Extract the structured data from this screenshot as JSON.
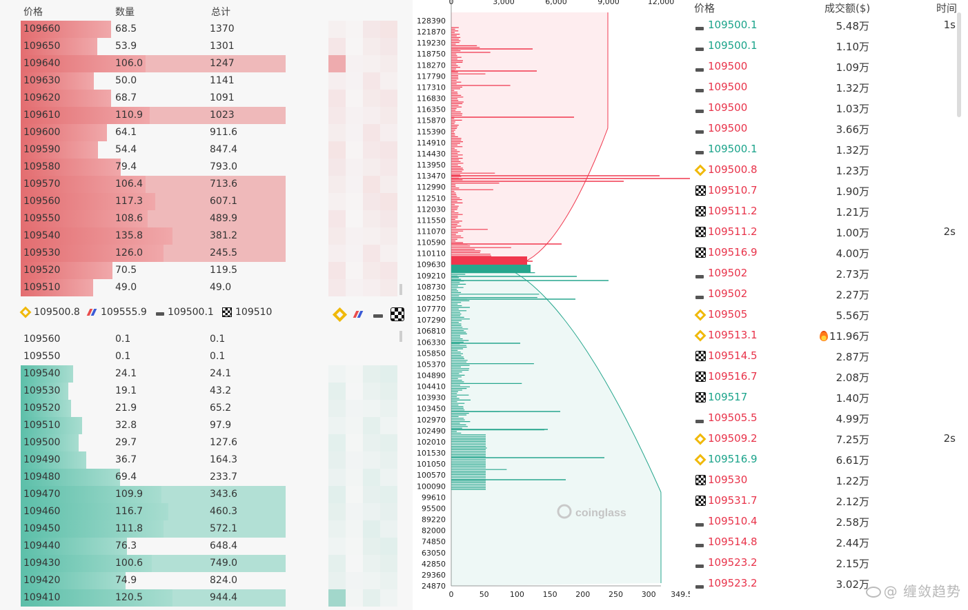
{
  "orderbook": {
    "headers": {
      "price": "价格",
      "qty": "数量",
      "total": "总计"
    },
    "asks": [
      {
        "price": "109660",
        "qty": "68.5",
        "total": "1370"
      },
      {
        "price": "109650",
        "qty": "53.9",
        "total": "1301"
      },
      {
        "price": "109640",
        "qty": "106.0",
        "total": "1247"
      },
      {
        "price": "109630",
        "qty": "50.0",
        "total": "1141"
      },
      {
        "price": "109620",
        "qty": "68.7",
        "total": "1091"
      },
      {
        "price": "109610",
        "qty": "110.9",
        "total": "1023"
      },
      {
        "price": "109600",
        "qty": "64.1",
        "total": "911.6"
      },
      {
        "price": "109590",
        "qty": "54.4",
        "total": "847.4"
      },
      {
        "price": "109580",
        "qty": "79.4",
        "total": "793.0"
      },
      {
        "price": "109570",
        "qty": "106.4",
        "total": "713.6"
      },
      {
        "price": "109560",
        "qty": "117.3",
        "total": "607.1"
      },
      {
        "price": "109550",
        "qty": "108.6",
        "total": "489.9"
      },
      {
        "price": "109540",
        "qty": "135.8",
        "total": "381.2"
      },
      {
        "price": "109530",
        "qty": "126.0",
        "total": "245.5"
      },
      {
        "price": "109520",
        "qty": "70.5",
        "total": "119.5"
      },
      {
        "price": "109510",
        "qty": "49.0",
        "total": "49.0"
      }
    ],
    "bids": [
      {
        "price": "109560",
        "qty": "0.1",
        "total": "0.1"
      },
      {
        "price": "109550",
        "qty": "0.1",
        "total": "0.1"
      },
      {
        "price": "109540",
        "qty": "24.1",
        "total": "24.1"
      },
      {
        "price": "109530",
        "qty": "19.1",
        "total": "43.2"
      },
      {
        "price": "109520",
        "qty": "21.9",
        "total": "65.2"
      },
      {
        "price": "109510",
        "qty": "32.8",
        "total": "97.9"
      },
      {
        "price": "109500",
        "qty": "29.7",
        "total": "127.6"
      },
      {
        "price": "109490",
        "qty": "36.7",
        "total": "164.3"
      },
      {
        "price": "109480",
        "qty": "69.4",
        "total": "233.7"
      },
      {
        "price": "109470",
        "qty": "109.9",
        "total": "343.6"
      },
      {
        "price": "109460",
        "qty": "116.7",
        "total": "460.3"
      },
      {
        "price": "109450",
        "qty": "111.8",
        "total": "572.1"
      },
      {
        "price": "109440",
        "qty": "76.3",
        "total": "648.4"
      },
      {
        "price": "109430",
        "qty": "100.6",
        "total": "749.0"
      },
      {
        "price": "109420",
        "qty": "74.9",
        "total": "824.0"
      },
      {
        "price": "109410",
        "qty": "120.5",
        "total": "944.4"
      }
    ],
    "exchange_prices": [
      {
        "icon": "binance-icon",
        "price": "109500.8"
      },
      {
        "icon": "bitmex-icon",
        "price": "109555.9"
      },
      {
        "icon": "bybit-icon",
        "price": "109500.1"
      },
      {
        "icon": "okx-icon",
        "price": "109510"
      }
    ]
  },
  "depth_chart": {
    "chart_data": {
      "type": "bar",
      "top_axis_ticks": [
        "0",
        "3,000",
        "6,000",
        "9,000",
        "12,000"
      ],
      "bottom_axis_ticks": [
        "0",
        "50",
        "100",
        "150",
        "200",
        "250",
        "300",
        "349.5"
      ],
      "y_ticks": [
        "128390",
        "121870",
        "119230",
        "118750",
        "118270",
        "117790",
        "117310",
        "116830",
        "116350",
        "115870",
        "115390",
        "114910",
        "114430",
        "113950",
        "113470",
        "112990",
        "112510",
        "112030",
        "111550",
        "111070",
        "110590",
        "110110",
        "109630",
        "109210",
        "108730",
        "108250",
        "107770",
        "107290",
        "106810",
        "106330",
        "105850",
        "105370",
        "104890",
        "104410",
        "103930",
        "103450",
        "102970",
        "102490",
        "102010",
        "101530",
        "101050",
        "100570",
        "100090",
        "99610",
        "95500",
        "89220",
        "82000",
        "74850",
        "63050",
        "42850",
        "29360",
        "24870"
      ],
      "ask_color": "#f0374d",
      "bid_color": "#26a68d",
      "watermark": "coinglass"
    }
  },
  "trades": {
    "headers": {
      "price": "价格",
      "amount": "成交额($)",
      "time": "时间"
    },
    "rows": [
      {
        "ex": "bybit-icon",
        "price": "109500.1",
        "side": "buy",
        "amount": "5.48万",
        "time": "1s"
      },
      {
        "ex": "bybit-icon",
        "price": "109500.1",
        "side": "buy",
        "amount": "1.10万",
        "time": ""
      },
      {
        "ex": "bybit-icon",
        "price": "109500",
        "side": "sell",
        "amount": "1.09万",
        "time": ""
      },
      {
        "ex": "bybit-icon",
        "price": "109500",
        "side": "sell",
        "amount": "1.32万",
        "time": ""
      },
      {
        "ex": "bybit-icon",
        "price": "109500",
        "side": "sell",
        "amount": "1.03万",
        "time": ""
      },
      {
        "ex": "bybit-icon",
        "price": "109500",
        "side": "sell",
        "amount": "3.66万",
        "time": ""
      },
      {
        "ex": "bybit-icon",
        "price": "109500.1",
        "side": "buy",
        "amount": "1.32万",
        "time": ""
      },
      {
        "ex": "binance-icon",
        "price": "109500.8",
        "side": "sell",
        "amount": "1.23万",
        "time": ""
      },
      {
        "ex": "okx-icon",
        "price": "109510.7",
        "side": "sell",
        "amount": "1.90万",
        "time": ""
      },
      {
        "ex": "okx-icon",
        "price": "109511.2",
        "side": "sell",
        "amount": "1.21万",
        "time": ""
      },
      {
        "ex": "okx-icon",
        "price": "109511.2",
        "side": "sell",
        "amount": "1.00万",
        "time": "2s"
      },
      {
        "ex": "okx-icon",
        "price": "109516.9",
        "side": "sell",
        "amount": "4.00万",
        "time": ""
      },
      {
        "ex": "bybit-icon",
        "price": "109502",
        "side": "sell",
        "amount": "2.73万",
        "time": ""
      },
      {
        "ex": "bybit-icon",
        "price": "109502",
        "side": "sell",
        "amount": "2.27万",
        "time": ""
      },
      {
        "ex": "binance-icon",
        "price": "109505",
        "side": "sell",
        "amount": "5.56万",
        "time": ""
      },
      {
        "ex": "binance-icon",
        "price": "109513.1",
        "side": "sell",
        "amount": "11.96万",
        "time": "",
        "hot": true
      },
      {
        "ex": "okx-icon",
        "price": "109514.5",
        "side": "sell",
        "amount": "2.87万",
        "time": ""
      },
      {
        "ex": "okx-icon",
        "price": "109516.7",
        "side": "sell",
        "amount": "2.08万",
        "time": ""
      },
      {
        "ex": "okx-icon",
        "price": "109517",
        "side": "buy",
        "amount": "1.40万",
        "time": ""
      },
      {
        "ex": "bybit-icon",
        "price": "109505.5",
        "side": "sell",
        "amount": "4.99万",
        "time": ""
      },
      {
        "ex": "binance-icon",
        "price": "109509.2",
        "side": "sell",
        "amount": "7.25万",
        "time": "2s"
      },
      {
        "ex": "binance-icon",
        "price": "109516.9",
        "side": "buy",
        "amount": "6.61万",
        "time": ""
      },
      {
        "ex": "okx-icon",
        "price": "109530",
        "side": "sell",
        "amount": "1.22万",
        "time": ""
      },
      {
        "ex": "okx-icon",
        "price": "109531.7",
        "side": "sell",
        "amount": "2.12万",
        "time": ""
      },
      {
        "ex": "bybit-icon",
        "price": "109510.4",
        "side": "sell",
        "amount": "2.58万",
        "time": ""
      },
      {
        "ex": "bybit-icon",
        "price": "109514.8",
        "side": "sell",
        "amount": "2.44万",
        "time": ""
      },
      {
        "ex": "bybit-icon",
        "price": "109523.2",
        "side": "sell",
        "amount": "2.15万",
        "time": ""
      },
      {
        "ex": "bybit-icon",
        "price": "109523.2",
        "side": "sell",
        "amount": "3.02万",
        "time": ""
      }
    ],
    "watermark": "@ 缠敛趋势"
  }
}
